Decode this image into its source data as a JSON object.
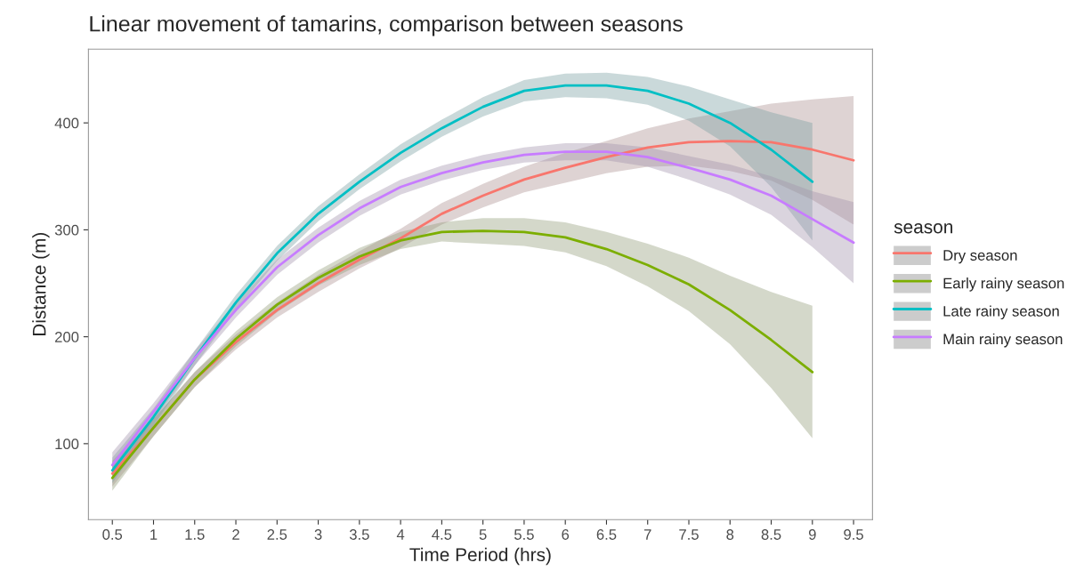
{
  "chart_data": {
    "type": "line",
    "title": "Linear movement of tamarins, comparison between seasons",
    "xlabel": "Time Period (hrs)",
    "ylabel": "Distance (m)",
    "legend_title": "season",
    "legend": "right",
    "grid": false,
    "marker": "none",
    "line_style": "solid",
    "xlim": [
      0.21,
      9.73
    ],
    "ylim": [
      29,
      469
    ],
    "xticks": [
      0.5,
      1,
      1.5,
      2,
      2.5,
      3,
      3.5,
      4,
      4.5,
      5,
      5.5,
      6,
      6.5,
      7,
      7.5,
      8,
      8.5,
      9,
      9.5
    ],
    "yticks": [
      100,
      200,
      300,
      400
    ],
    "series": [
      {
        "name": "Dry season",
        "color": "#f8766d",
        "x": [
          0.5,
          1,
          1.5,
          2,
          2.5,
          3,
          3.5,
          4,
          4.5,
          5,
          5.5,
          6,
          6.5,
          7,
          7.5,
          8,
          8.5,
          9,
          9.5
        ],
        "values": [
          72,
          115,
          160,
          195,
          225,
          250,
          272,
          292,
          315,
          332,
          347,
          358,
          368,
          377,
          382,
          383,
          382,
          375,
          365
        ],
        "lower": [
          60,
          107,
          153,
          188,
          218,
          242,
          264,
          283,
          305,
          321,
          335,
          344,
          353,
          359,
          360,
          355,
          346,
          328,
          305
        ],
        "upper": [
          84,
          123,
          167,
          202,
          232,
          258,
          280,
          301,
          325,
          343,
          359,
          372,
          383,
          395,
          404,
          411,
          418,
          422,
          425
        ]
      },
      {
        "name": "Early rainy season",
        "color": "#7cae00",
        "x": [
          0.5,
          1,
          1.5,
          2,
          2.5,
          3,
          3.5,
          4,
          4.5,
          5,
          5.5,
          6,
          6.5,
          7,
          7.5,
          8,
          8.5,
          9
        ],
        "values": [
          68,
          115,
          160,
          198,
          230,
          255,
          275,
          290,
          298,
          299,
          298,
          293,
          282,
          267,
          249,
          225,
          197,
          167
        ],
        "lower": [
          56,
          107,
          153,
          191,
          223,
          248,
          267,
          282,
          289,
          287,
          285,
          279,
          266,
          247,
          224,
          193,
          152,
          105
        ],
        "upper": [
          80,
          123,
          167,
          205,
          237,
          262,
          283,
          298,
          307,
          311,
          311,
          307,
          298,
          287,
          274,
          257,
          242,
          229
        ]
      },
      {
        "name": "Late rainy season",
        "color": "#00bfc4",
        "x": [
          0.5,
          1,
          1.5,
          2,
          2.5,
          3,
          3.5,
          4,
          4.5,
          5,
          5.5,
          6,
          6.5,
          7,
          7.5,
          8,
          8.5,
          9
        ],
        "values": [
          75,
          125,
          180,
          232,
          278,
          315,
          345,
          372,
          395,
          415,
          430,
          435,
          435,
          430,
          418,
          400,
          375,
          345
        ],
        "lower": [
          63,
          117,
          173,
          225,
          271,
          308,
          338,
          364,
          387,
          406,
          420,
          424,
          423,
          417,
          402,
          378,
          340,
          290
        ],
        "upper": [
          87,
          133,
          187,
          239,
          285,
          322,
          352,
          380,
          403,
          424,
          440,
          446,
          447,
          443,
          434,
          422,
          410,
          400
        ]
      },
      {
        "name": "Main rainy season",
        "color": "#c77cff",
        "x": [
          0.5,
          1,
          1.5,
          2,
          2.5,
          3,
          3.5,
          4,
          4.5,
          5,
          5.5,
          6,
          6.5,
          7,
          7.5,
          8,
          8.5,
          9,
          9.5
        ],
        "values": [
          80,
          130,
          180,
          225,
          265,
          295,
          320,
          340,
          353,
          363,
          370,
          373,
          373,
          368,
          358,
          347,
          332,
          310,
          288
        ],
        "lower": [
          68,
          122,
          173,
          218,
          258,
          288,
          313,
          333,
          346,
          356,
          363,
          365,
          365,
          359,
          347,
          333,
          314,
          284,
          250
        ],
        "upper": [
          92,
          138,
          187,
          232,
          272,
          302,
          327,
          347,
          360,
          370,
          377,
          381,
          381,
          377,
          369,
          361,
          350,
          336,
          326
        ]
      }
    ]
  }
}
